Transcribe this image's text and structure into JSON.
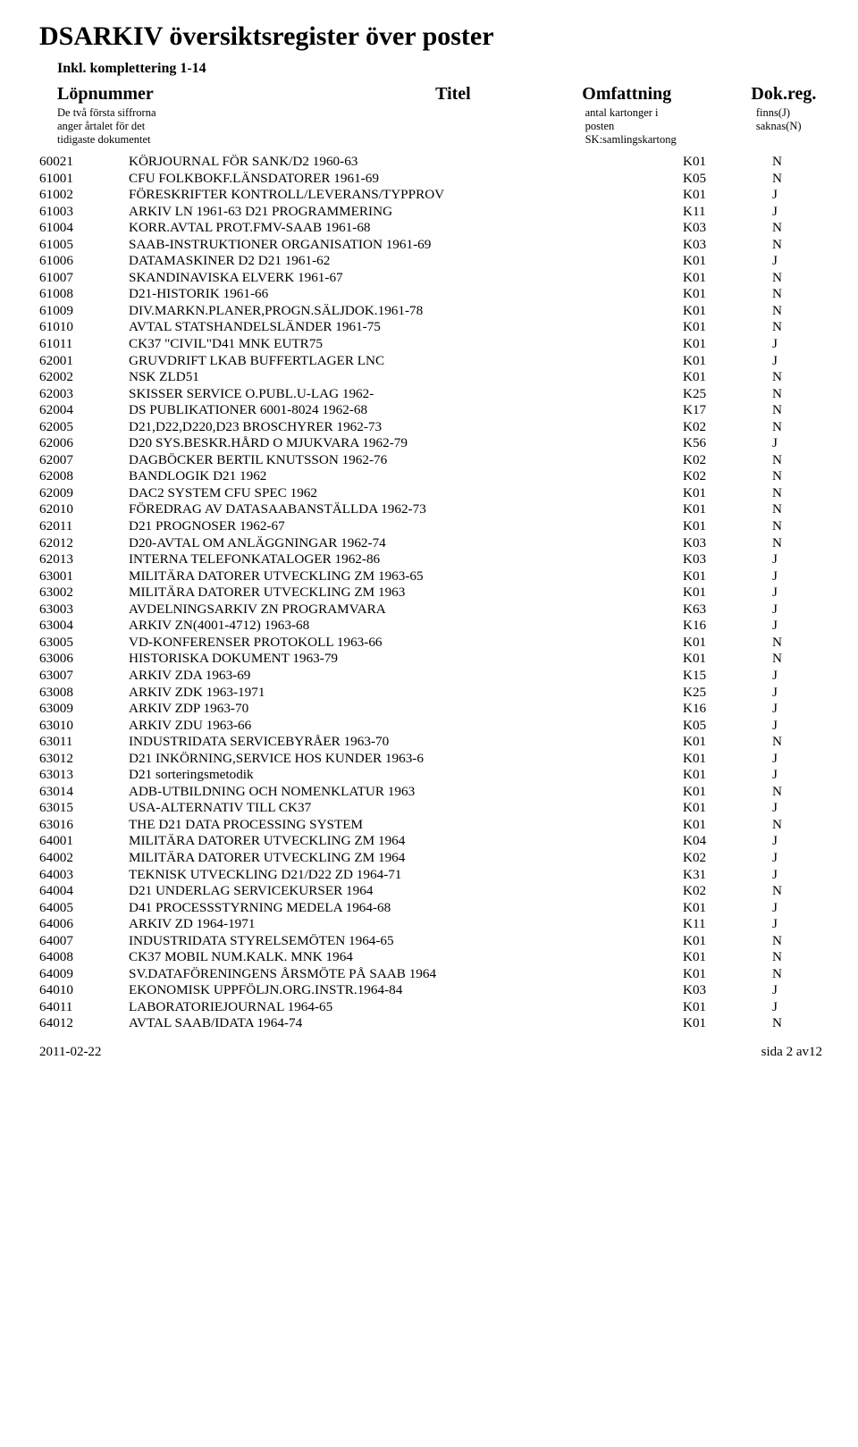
{
  "doc": {
    "main_title": "DSARKIV översiktsregister över poster",
    "subtitle": "Inkl. komplettering 1-14",
    "header": {
      "col1": "Löpnummer",
      "col2": "Titel",
      "col3": "Omfattning",
      "col4": "Dok.reg."
    },
    "subheader": {
      "col1_l1": "De två första siffrorna",
      "col1_l2": "anger årtalet för det",
      "col1_l3": "tidigaste dokumentet",
      "col3_l1": "antal kartonger i",
      "col3_l2": "posten",
      "col3_l3": "SK:samlingskartong",
      "col4_l1": "finns(J)",
      "col4_l2": "saknas(N)"
    },
    "footer": {
      "left": "2011-02-22",
      "right": "sida 2 av12"
    }
  },
  "rows": [
    {
      "n": "60021",
      "t": "KÖRJOURNAL FÖR SANK/D2 1960-63",
      "k": "K01",
      "f": "N"
    },
    {
      "n": "61001",
      "t": "CFU FOLKBOKF.LÄNSDATORER 1961-69",
      "k": "K05",
      "f": "N"
    },
    {
      "n": "61002",
      "t": "FÖRESKRIFTER KONTROLL/LEVERANS/TYPPROV",
      "k": "K01",
      "f": "J"
    },
    {
      "n": "61003",
      "t": "ARKIV LN 1961-63 D21 PROGRAMMERING",
      "k": "K11",
      "f": "J"
    },
    {
      "n": "61004",
      "t": "KORR.AVTAL PROT.FMV-SAAB 1961-68",
      "k": "K03",
      "f": "N"
    },
    {
      "n": "61005",
      "t": "SAAB-INSTRUKTIONER ORGANISATION 1961-69",
      "k": "K03",
      "f": "N"
    },
    {
      "n": "61006",
      "t": "DATAMASKINER D2 D21 1961-62",
      "k": "K01",
      "f": "J"
    },
    {
      "n": "61007",
      "t": "SKANDINAVISKA ELVERK 1961-67",
      "k": "K01",
      "f": "N"
    },
    {
      "n": "61008",
      "t": "D21-HISTORIK 1961-66",
      "k": "K01",
      "f": "N"
    },
    {
      "n": "61009",
      "t": "DIV.MARKN.PLANER,PROGN.SÄLJDOK.1961-78",
      "k": "K01",
      "f": "N"
    },
    {
      "n": "61010",
      "t": "AVTAL STATSHANDELSLÄNDER 1961-75",
      "k": "K01",
      "f": "N"
    },
    {
      "n": "61011",
      "t": "CK37 \"CIVIL\"D41 MNK EUTR75",
      "k": "K01",
      "f": "J"
    },
    {
      "n": "62001",
      "t": "GRUVDRIFT LKAB BUFFERTLAGER LNC",
      "k": "K01",
      "f": "J"
    },
    {
      "n": "62002",
      "t": "NSK ZLD51",
      "k": "K01",
      "f": "N"
    },
    {
      "n": "62003",
      "t": "SKISSER SERVICE O.PUBL.U-LAG 1962-",
      "k": "K25",
      "f": "N"
    },
    {
      "n": "62004",
      "t": "DS PUBLIKATIONER 6001-8024 1962-68",
      "k": "K17",
      "f": "N"
    },
    {
      "n": "62005",
      "t": "D21,D22,D220,D23 BROSCHYRER 1962-73",
      "k": "K02",
      "f": "N"
    },
    {
      "n": "62006",
      "t": "D20 SYS.BESKR.HÅRD O MJUKVARA 1962-79",
      "k": "K56",
      "f": "J"
    },
    {
      "n": "62007",
      "t": "DAGBÖCKER BERTIL KNUTSSON 1962-76",
      "k": "K02",
      "f": "N"
    },
    {
      "n": "62008",
      "t": "BANDLOGIK D21 1962",
      "k": "K02",
      "f": "N"
    },
    {
      "n": "62009",
      "t": "DAC2 SYSTEM CFU SPEC 1962",
      "k": "K01",
      "f": "N"
    },
    {
      "n": "62010",
      "t": "FÖREDRAG AV DATASAABANSTÄLLDA 1962-73",
      "k": "K01",
      "f": "N"
    },
    {
      "n": "62011",
      "t": "D21 PROGNOSER 1962-67",
      "k": "K01",
      "f": "N"
    },
    {
      "n": "62012",
      "t": "D20-AVTAL OM ANLÄGGNINGAR 1962-74",
      "k": "K03",
      "f": "N"
    },
    {
      "n": "62013",
      "t": "INTERNA TELEFONKATALOGER 1962-86",
      "k": "K03",
      "f": "J"
    },
    {
      "n": "63001",
      "t": "MILITÄRA DATORER UTVECKLING ZM 1963-65",
      "k": "K01",
      "f": "J"
    },
    {
      "n": "63002",
      "t": "MILITÄRA DATORER UTVECKLING ZM 1963",
      "k": "K01",
      "f": "J"
    },
    {
      "n": "63003",
      "t": "AVDELNINGSARKIV ZN PROGRAMVARA",
      "k": "K63",
      "f": "J"
    },
    {
      "n": "63004",
      "t": "ARKIV ZN(4001-4712) 1963-68",
      "k": "K16",
      "f": "J"
    },
    {
      "n": "63005",
      "t": "VD-KONFERENSER PROTOKOLL 1963-66",
      "k": "K01",
      "f": "N"
    },
    {
      "n": "63006",
      "t": "HISTORISKA DOKUMENT 1963-79",
      "k": "K01",
      "f": "N"
    },
    {
      "n": "63007",
      "t": "ARKIV ZDA 1963-69",
      "k": "K15",
      "f": "J"
    },
    {
      "n": "63008",
      "t": "ARKIV ZDK 1963-1971",
      "k": "K25",
      "f": "J"
    },
    {
      "n": "63009",
      "t": "ARKIV ZDP 1963-70",
      "k": "K16",
      "f": "J"
    },
    {
      "n": "63010",
      "t": "ARKIV ZDU 1963-66",
      "k": "K05",
      "f": "J"
    },
    {
      "n": "63011",
      "t": "INDUSTRIDATA SERVICEBYRÅER 1963-70",
      "k": "K01",
      "f": "N"
    },
    {
      "n": "63012",
      "t": "D21 INKÖRNING,SERVICE HOS KUNDER 1963-6",
      "k": "K01",
      "f": "J"
    },
    {
      "n": "63013",
      "t": "D21 sorteringsmetodik",
      "k": "K01",
      "f": "J"
    },
    {
      "n": "63014",
      "t": "ADB-UTBILDNING OCH NOMENKLATUR 1963",
      "k": "K01",
      "f": "N"
    },
    {
      "n": "63015",
      "t": "USA-ALTERNATIV TILL CK37",
      "k": "K01",
      "f": "J"
    },
    {
      "n": "63016",
      "t": "THE D21 DATA PROCESSING SYSTEM",
      "k": "K01",
      "f": "N"
    },
    {
      "n": "64001",
      "t": "MILITÄRA DATORER UTVECKLING ZM 1964",
      "k": "K04",
      "f": "J"
    },
    {
      "n": "64002",
      "t": "MILITÄRA DATORER UTVECKLING ZM 1964",
      "k": "K02",
      "f": "J"
    },
    {
      "n": "64003",
      "t": "TEKNISK UTVECKLING D21/D22 ZD 1964-71",
      "k": "K31",
      "f": "J"
    },
    {
      "n": "64004",
      "t": "D21 UNDERLAG SERVICEKURSER 1964",
      "k": "K02",
      "f": "N"
    },
    {
      "n": "64005",
      "t": "D41 PROCESSSTYRNING MEDELA 1964-68",
      "k": "K01",
      "f": "J"
    },
    {
      "n": "64006",
      "t": "ARKIV ZD 1964-1971",
      "k": "K11",
      "f": "J"
    },
    {
      "n": "64007",
      "t": "INDUSTRIDATA STYRELSEMÖTEN 1964-65",
      "k": "K01",
      "f": "N"
    },
    {
      "n": "64008",
      "t": "CK37 MOBIL NUM.KALK. MNK 1964",
      "k": "K01",
      "f": "N"
    },
    {
      "n": "64009",
      "t": "SV.DATAFÖRENINGENS ÅRSMÖTE PÅ SAAB 1964",
      "k": "K01",
      "f": "N"
    },
    {
      "n": "64010",
      "t": "EKONOMISK UPPFÖLJN.ORG.INSTR.1964-84",
      "k": "K03",
      "f": "J"
    },
    {
      "n": "64011",
      "t": "LABORATORIEJOURNAL 1964-65",
      "k": "K01",
      "f": "J"
    },
    {
      "n": "64012",
      "t": "AVTAL SAAB/IDATA 1964-74",
      "k": "K01",
      "f": "N"
    }
  ]
}
